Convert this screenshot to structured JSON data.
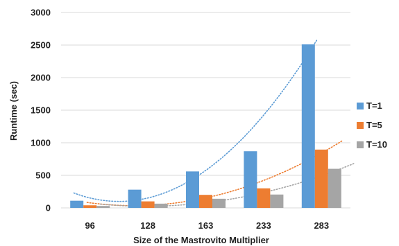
{
  "chart_data": {
    "type": "bar",
    "title": "",
    "xlabel": "Size of the Mastrovito Multiplier",
    "ylabel": "Runtime (sec)",
    "categories": [
      "96",
      "128",
      "163",
      "233",
      "283"
    ],
    "ylim": [
      0,
      3000
    ],
    "yticks": [
      "0",
      "500",
      "1000",
      "1500",
      "2000",
      "2500",
      "3000"
    ],
    "grid": true,
    "legend_position": "right",
    "trendlines": "dotted polynomial, one per series",
    "series": [
      {
        "name": "T=1",
        "color": "#5b9bd5",
        "values": [
          110,
          280,
          560,
          870,
          2510
        ]
      },
      {
        "name": "T=5",
        "color": "#ed7d31",
        "values": [
          40,
          100,
          200,
          300,
          895
        ]
      },
      {
        "name": "T=10",
        "color": "#a5a5a5",
        "values": [
          30,
          65,
          140,
          205,
          600
        ]
      }
    ]
  }
}
